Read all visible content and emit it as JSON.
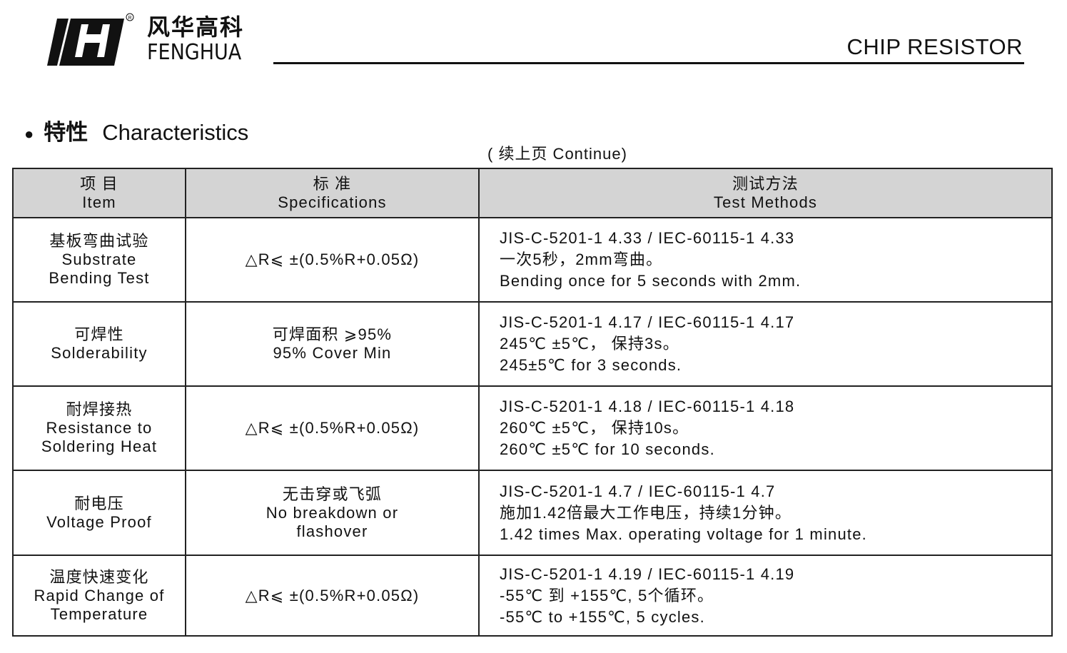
{
  "header": {
    "brand_cn": "风华高科",
    "brand_en": "FENGHUA",
    "registered": "®",
    "doc_title": "CHIP RESISTOR"
  },
  "section": {
    "bullet": "●",
    "title_cn": "特性",
    "title_en": "Characteristics",
    "continue": "( 续上页 Continue)"
  },
  "table": {
    "headers": [
      {
        "cn": "项 目",
        "en": "Item"
      },
      {
        "cn": "标 准",
        "en": "Specifications"
      },
      {
        "cn": "测试方法",
        "en": "Test Methods"
      }
    ],
    "rows": [
      {
        "item": [
          "基板弯曲试验",
          "Substrate",
          "Bending Test"
        ],
        "spec": [
          "△R⩽ ±(0.5%R+0.05Ω)"
        ],
        "method": [
          "JIS-C-5201-1 4.33 /  IEC-60115-1 4.33",
          "一次5秒，2mm弯曲。",
          "Bending once for 5 seconds with 2mm."
        ]
      },
      {
        "item": [
          "可焊性",
          "Solderability"
        ],
        "spec": [
          "可焊面积 ⩾95%",
          "95% Cover Min"
        ],
        "method": [
          "JIS-C-5201-1 4.17 / IEC-60115-1 4.17",
          "245℃ ±5℃， 保持3s。",
          "245±5℃ for 3 seconds."
        ]
      },
      {
        "item": [
          "耐焊接热",
          "Resistance to",
          "Soldering Heat"
        ],
        "spec": [
          "△R⩽ ±(0.5%R+0.05Ω)"
        ],
        "method": [
          "JIS-C-5201-1 4.18 / IEC-60115-1 4.18",
          "260℃ ±5℃， 保持10s。",
          "260℃ ±5℃ for 10 seconds."
        ]
      },
      {
        "item": [
          "耐电压",
          "Voltage Proof"
        ],
        "spec": [
          "无击穿或飞弧",
          "No breakdown or",
          "flashover"
        ],
        "method": [
          "JIS-C-5201-1 4.7  /  IEC-60115-1 4.7",
          "施加1.42倍最大工作电压，持续1分钟。",
          "1.42 times  Max. operating voltage for 1 minute."
        ]
      },
      {
        "item": [
          "温度快速变化",
          "Rapid Change of",
          "Temperature"
        ],
        "spec": [
          "△R⩽ ±(0.5%R+0.05Ω)"
        ],
        "method": [
          "JIS-C-5201-1 4.19  /  IEC-60115-1 4.19",
          "-55℃  到 +155℃, 5个循环。",
          "-55℃  to +155℃, 5 cycles."
        ]
      }
    ]
  }
}
